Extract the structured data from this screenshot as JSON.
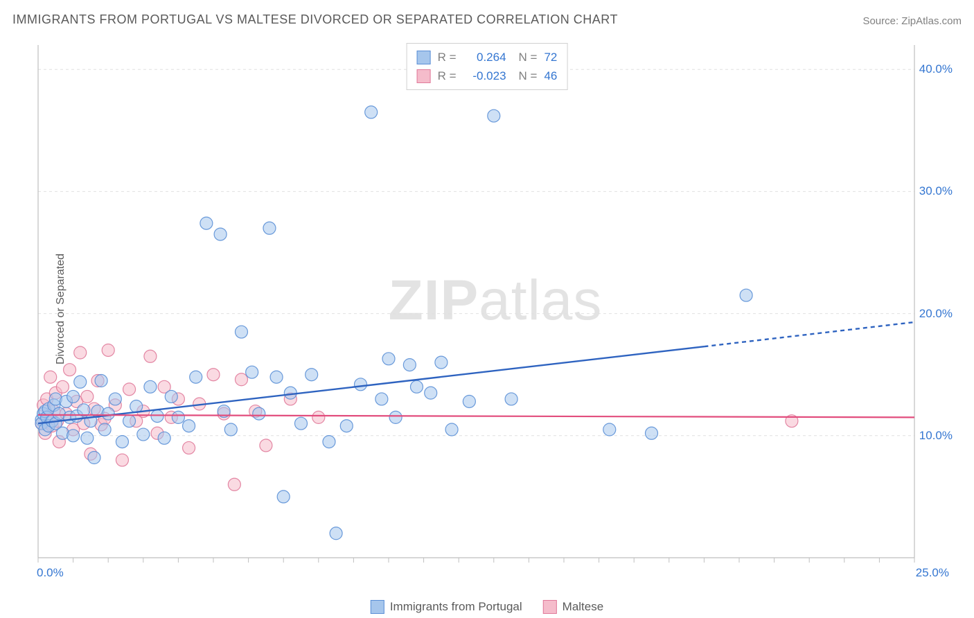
{
  "title": "IMMIGRANTS FROM PORTUGAL VS MALTESE DIVORCED OR SEPARATED CORRELATION CHART",
  "source": "Source: ZipAtlas.com",
  "watermark": {
    "bold": "ZIP",
    "light": "atlas"
  },
  "chart": {
    "type": "scatter",
    "xlim": [
      0,
      25
    ],
    "ylim": [
      0,
      42
    ],
    "xticks": [
      0,
      25
    ],
    "xtick_labels": [
      "0.0%",
      "25.0%"
    ],
    "yticks": [
      10,
      20,
      30,
      40
    ],
    "ytick_labels": [
      "10.0%",
      "20.0%",
      "30.0%",
      "40.0%"
    ],
    "ylabel": "Divorced or Separated",
    "background_color": "#ffffff",
    "grid_color": "#e0e0e0",
    "axis_line_color": "#bfbfbf",
    "tick_label_color": "#3476d1",
    "marker_radius": 9,
    "marker_opacity": 0.55,
    "marker_stroke_width": 1.2,
    "series": [
      {
        "name": "Immigrants from Portugal",
        "fill": "#a6c6ec",
        "stroke": "#5a8fd6",
        "R": "0.264",
        "N": "72",
        "trend": {
          "x1": 0,
          "y1": 11.0,
          "x2_solid": 19.0,
          "y2_solid": 17.3,
          "x2_dash": 25.0,
          "y2_dash": 19.3,
          "color": "#2e63c0",
          "width": 2.4
        },
        "points": [
          [
            0.1,
            11.3
          ],
          [
            0.1,
            11.0
          ],
          [
            0.15,
            11.8
          ],
          [
            0.2,
            10.5
          ],
          [
            0.2,
            12.0
          ],
          [
            0.25,
            11.5
          ],
          [
            0.3,
            12.2
          ],
          [
            0.3,
            10.8
          ],
          [
            0.4,
            11.2
          ],
          [
            0.45,
            12.5
          ],
          [
            0.5,
            11.0
          ],
          [
            0.5,
            13.0
          ],
          [
            0.6,
            11.8
          ],
          [
            0.7,
            10.2
          ],
          [
            0.8,
            12.8
          ],
          [
            0.9,
            11.5
          ],
          [
            1.0,
            10.0
          ],
          [
            1.0,
            13.2
          ],
          [
            1.1,
            11.6
          ],
          [
            1.2,
            14.4
          ],
          [
            1.3,
            12.1
          ],
          [
            1.4,
            9.8
          ],
          [
            1.5,
            11.2
          ],
          [
            1.6,
            8.2
          ],
          [
            1.7,
            12.0
          ],
          [
            1.8,
            14.5
          ],
          [
            1.9,
            10.5
          ],
          [
            2.0,
            11.8
          ],
          [
            2.2,
            13.0
          ],
          [
            2.4,
            9.5
          ],
          [
            2.6,
            11.2
          ],
          [
            2.8,
            12.4
          ],
          [
            3.0,
            10.1
          ],
          [
            3.2,
            14.0
          ],
          [
            3.4,
            11.6
          ],
          [
            3.6,
            9.8
          ],
          [
            3.8,
            13.2
          ],
          [
            4.0,
            11.5
          ],
          [
            4.3,
            10.8
          ],
          [
            4.5,
            14.8
          ],
          [
            4.8,
            27.4
          ],
          [
            5.2,
            26.5
          ],
          [
            5.3,
            12.0
          ],
          [
            5.5,
            10.5
          ],
          [
            5.8,
            18.5
          ],
          [
            6.1,
            15.2
          ],
          [
            6.3,
            11.8
          ],
          [
            6.6,
            27.0
          ],
          [
            6.8,
            14.8
          ],
          [
            7.0,
            5.0
          ],
          [
            7.2,
            13.5
          ],
          [
            7.5,
            11.0
          ],
          [
            7.8,
            15.0
          ],
          [
            8.3,
            9.5
          ],
          [
            8.5,
            2.0
          ],
          [
            8.8,
            10.8
          ],
          [
            9.2,
            14.2
          ],
          [
            9.5,
            36.5
          ],
          [
            9.8,
            13.0
          ],
          [
            10.0,
            16.3
          ],
          [
            10.2,
            11.5
          ],
          [
            10.6,
            15.8
          ],
          [
            10.8,
            14.0
          ],
          [
            11.2,
            13.5
          ],
          [
            11.5,
            16.0
          ],
          [
            11.8,
            10.5
          ],
          [
            12.3,
            12.8
          ],
          [
            13.0,
            36.2
          ],
          [
            13.5,
            13.0
          ],
          [
            16.3,
            10.5
          ],
          [
            17.5,
            10.2
          ],
          [
            20.2,
            21.5
          ]
        ]
      },
      {
        "name": "Maltese",
        "fill": "#f5bccb",
        "stroke": "#e07a9a",
        "R": "-0.023",
        "N": "46",
        "trend": {
          "x1": 0,
          "y1": 11.7,
          "x2_solid": 25.0,
          "y2_solid": 11.5,
          "x2_dash": 25.0,
          "y2_dash": 11.5,
          "color": "#e24d7d",
          "width": 2.2
        },
        "points": [
          [
            0.1,
            11.0
          ],
          [
            0.15,
            12.5
          ],
          [
            0.2,
            10.2
          ],
          [
            0.25,
            13.0
          ],
          [
            0.3,
            11.5
          ],
          [
            0.35,
            14.8
          ],
          [
            0.4,
            10.8
          ],
          [
            0.45,
            12.0
          ],
          [
            0.5,
            13.5
          ],
          [
            0.55,
            11.2
          ],
          [
            0.6,
            9.5
          ],
          [
            0.7,
            14.0
          ],
          [
            0.8,
            11.8
          ],
          [
            0.9,
            15.4
          ],
          [
            1.0,
            10.5
          ],
          [
            1.1,
            12.8
          ],
          [
            1.2,
            16.8
          ],
          [
            1.3,
            11.0
          ],
          [
            1.4,
            13.2
          ],
          [
            1.5,
            8.5
          ],
          [
            1.6,
            12.2
          ],
          [
            1.7,
            14.5
          ],
          [
            1.8,
            10.9
          ],
          [
            1.9,
            11.4
          ],
          [
            2.0,
            17.0
          ],
          [
            2.2,
            12.5
          ],
          [
            2.4,
            8.0
          ],
          [
            2.6,
            13.8
          ],
          [
            2.8,
            11.2
          ],
          [
            3.0,
            12.0
          ],
          [
            3.2,
            16.5
          ],
          [
            3.4,
            10.2
          ],
          [
            3.6,
            14.0
          ],
          [
            3.8,
            11.5
          ],
          [
            4.0,
            13.0
          ],
          [
            4.3,
            9.0
          ],
          [
            4.6,
            12.6
          ],
          [
            5.0,
            15.0
          ],
          [
            5.3,
            11.8
          ],
          [
            5.6,
            6.0
          ],
          [
            5.8,
            14.6
          ],
          [
            6.2,
            12.0
          ],
          [
            6.5,
            9.2
          ],
          [
            7.2,
            13.0
          ],
          [
            8.0,
            11.5
          ],
          [
            21.5,
            11.2
          ]
        ]
      }
    ],
    "legend_top": {
      "labels": {
        "R": "R =",
        "N": "N ="
      }
    },
    "legend_bottom": [
      {
        "label": "Immigrants from Portugal",
        "fill": "#a6c6ec",
        "stroke": "#5a8fd6"
      },
      {
        "label": "Maltese",
        "fill": "#f5bccb",
        "stroke": "#e07a9a"
      }
    ]
  }
}
